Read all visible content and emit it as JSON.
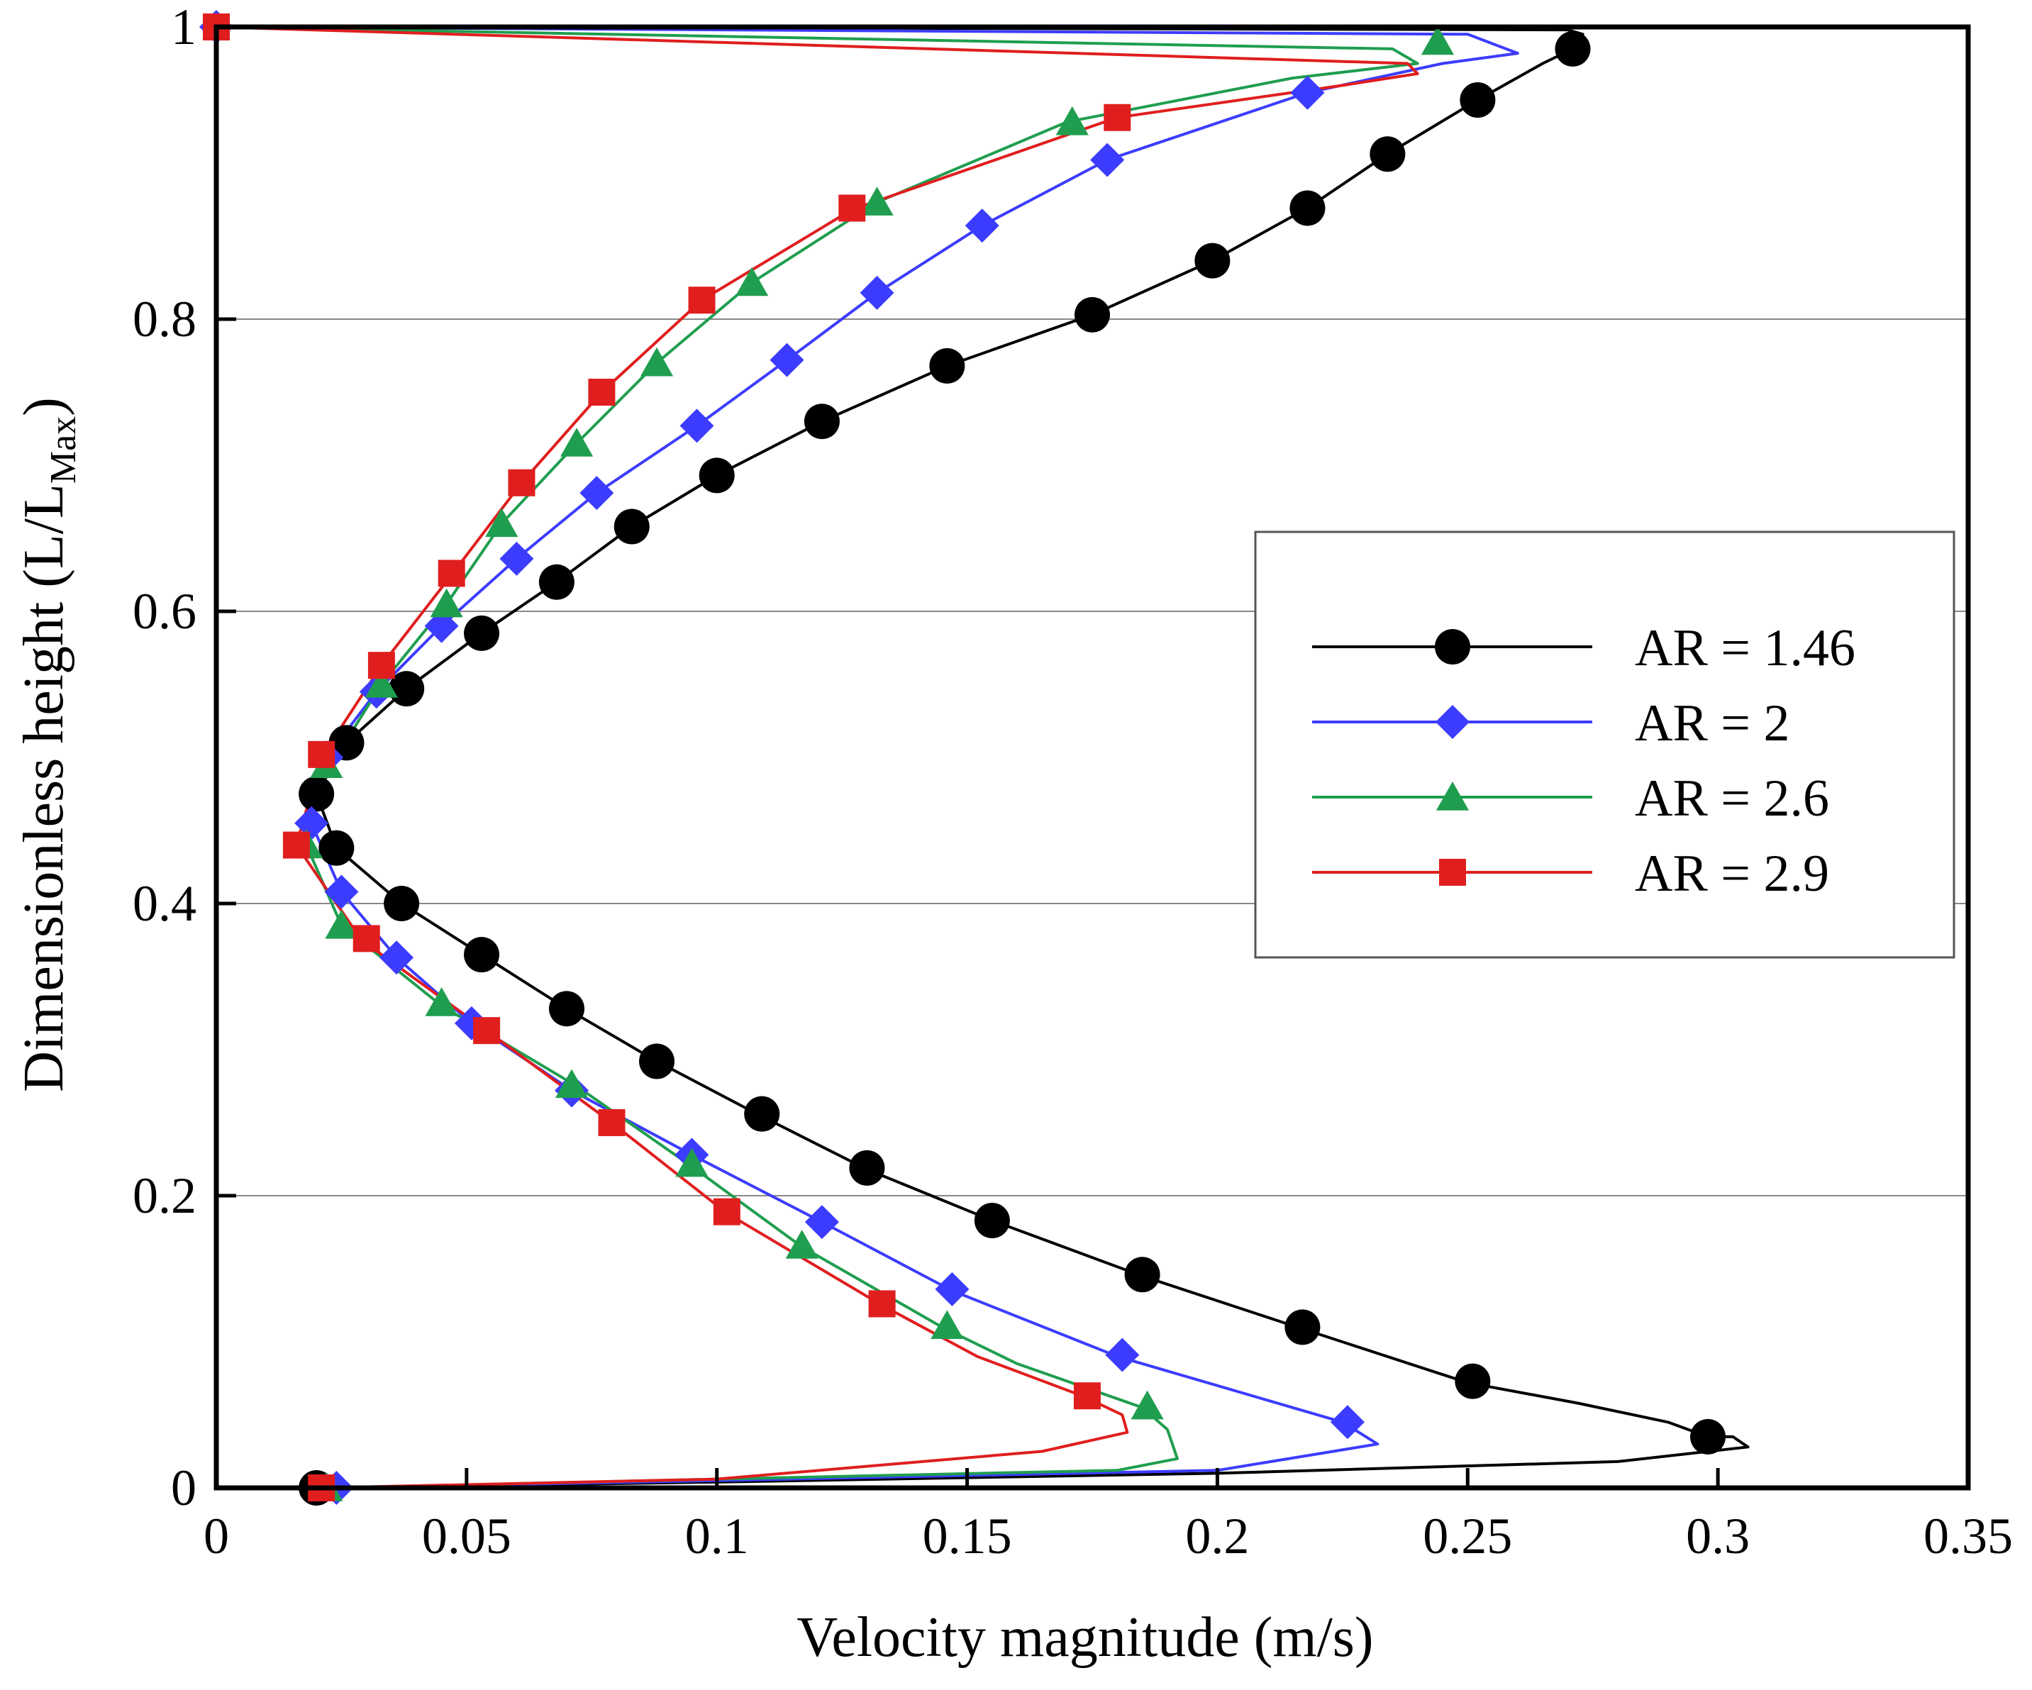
{
  "chart_data": {
    "type": "line",
    "title": "",
    "xlabel": "Velocity magnitude (m/s)",
    "ylabel_main": "Dimensionless height (L/L",
    "ylabel_sub": "Max",
    "ylabel_close": ")",
    "xlim": [
      0,
      0.35
    ],
    "ylim": [
      0,
      1
    ],
    "x_ticks": [
      0,
      0.05,
      0.1,
      0.15,
      0.2,
      0.25,
      0.3,
      0.35
    ],
    "x_tick_labels": [
      "0",
      "0.05",
      "0.1",
      "0.15",
      "0.2",
      "0.25",
      "0.3",
      "0.35"
    ],
    "y_ticks": [
      0,
      0.2,
      0.4,
      0.6,
      0.8,
      1
    ],
    "y_tick_labels": [
      "0",
      "0.2",
      "0.4",
      "0.6",
      "0.8",
      "1"
    ],
    "grid": "horizontal",
    "legend_position": "center-right",
    "series": [
      {
        "name": "AR = 1.46",
        "color": "#000000",
        "marker": "circle",
        "line": [
          [
            0.021,
            0.0
          ],
          [
            0.1,
            0.004
          ],
          [
            0.2,
            0.01
          ],
          [
            0.28,
            0.018
          ],
          [
            0.306,
            0.028
          ],
          [
            0.303,
            0.035
          ],
          [
            0.298,
            0.035
          ],
          [
            0.29,
            0.045
          ],
          [
            0.272,
            0.058
          ],
          [
            0.25,
            0.072
          ],
          [
            0.216,
            0.11
          ],
          [
            0.185,
            0.145
          ],
          [
            0.155,
            0.183
          ],
          [
            0.13,
            0.218
          ],
          [
            0.108,
            0.256
          ],
          [
            0.088,
            0.292
          ],
          [
            0.07,
            0.328
          ],
          [
            0.053,
            0.365
          ],
          [
            0.037,
            0.4
          ],
          [
            0.024,
            0.438
          ],
          [
            0.02,
            0.475
          ],
          [
            0.026,
            0.51
          ],
          [
            0.038,
            0.547
          ],
          [
            0.053,
            0.585
          ],
          [
            0.068,
            0.62
          ],
          [
            0.083,
            0.658
          ],
          [
            0.1,
            0.693
          ],
          [
            0.121,
            0.73
          ],
          [
            0.146,
            0.768
          ],
          [
            0.175,
            0.803
          ],
          [
            0.199,
            0.84
          ],
          [
            0.218,
            0.876
          ],
          [
            0.234,
            0.913
          ],
          [
            0.252,
            0.95
          ],
          [
            0.265,
            0.975
          ],
          [
            0.271,
            0.985
          ],
          [
            0.273,
            0.995
          ],
          [
            0.27,
            0.998
          ],
          [
            0.15,
            0.999
          ],
          [
            0.0,
            1.0
          ]
        ],
        "markers": [
          [
            0.02,
            0.0
          ],
          [
            0.298,
            0.035
          ],
          [
            0.251,
            0.073
          ],
          [
            0.217,
            0.11
          ],
          [
            0.185,
            0.146
          ],
          [
            0.155,
            0.183
          ],
          [
            0.13,
            0.219
          ],
          [
            0.109,
            0.256
          ],
          [
            0.088,
            0.292
          ],
          [
            0.07,
            0.328
          ],
          [
            0.053,
            0.365
          ],
          [
            0.037,
            0.4
          ],
          [
            0.024,
            0.438
          ],
          [
            0.02,
            0.475
          ],
          [
            0.026,
            0.51
          ],
          [
            0.038,
            0.547
          ],
          [
            0.053,
            0.585
          ],
          [
            0.068,
            0.62
          ],
          [
            0.083,
            0.658
          ],
          [
            0.1,
            0.693
          ],
          [
            0.121,
            0.73
          ],
          [
            0.146,
            0.768
          ],
          [
            0.175,
            0.803
          ],
          [
            0.199,
            0.84
          ],
          [
            0.218,
            0.876
          ],
          [
            0.234,
            0.913
          ],
          [
            0.252,
            0.95
          ],
          [
            0.271,
            0.985
          ]
        ]
      },
      {
        "name": "AR = 2",
        "color": "#3c3cff",
        "marker": "diamond",
        "line": [
          [
            0.023,
            0.0
          ],
          [
            0.1,
            0.005
          ],
          [
            0.2,
            0.012
          ],
          [
            0.232,
            0.03
          ],
          [
            0.225,
            0.045
          ],
          [
            0.21,
            0.06
          ],
          [
            0.18,
            0.09
          ],
          [
            0.147,
            0.135
          ],
          [
            0.121,
            0.182
          ],
          [
            0.095,
            0.228
          ],
          [
            0.071,
            0.272
          ],
          [
            0.051,
            0.318
          ],
          [
            0.036,
            0.363
          ],
          [
            0.025,
            0.408
          ],
          [
            0.019,
            0.455
          ],
          [
            0.022,
            0.5
          ],
          [
            0.032,
            0.545
          ],
          [
            0.045,
            0.59
          ],
          [
            0.06,
            0.636
          ],
          [
            0.076,
            0.681
          ],
          [
            0.096,
            0.727
          ],
          [
            0.114,
            0.772
          ],
          [
            0.132,
            0.818
          ],
          [
            0.153,
            0.864
          ],
          [
            0.178,
            0.909
          ],
          [
            0.218,
            0.955
          ],
          [
            0.245,
            0.975
          ],
          [
            0.26,
            0.982
          ],
          [
            0.25,
            0.995
          ],
          [
            0.0,
            1.0
          ]
        ],
        "markers": [
          [
            0.024,
            0.0
          ],
          [
            0.226,
            0.045
          ],
          [
            0.181,
            0.091
          ],
          [
            0.147,
            0.136
          ],
          [
            0.121,
            0.182
          ],
          [
            0.095,
            0.228
          ],
          [
            0.071,
            0.272
          ],
          [
            0.051,
            0.318
          ],
          [
            0.036,
            0.363
          ],
          [
            0.025,
            0.408
          ],
          [
            0.019,
            0.455
          ],
          [
            0.022,
            0.5
          ],
          [
            0.032,
            0.545
          ],
          [
            0.045,
            0.59
          ],
          [
            0.06,
            0.636
          ],
          [
            0.076,
            0.681
          ],
          [
            0.096,
            0.727
          ],
          [
            0.114,
            0.772
          ],
          [
            0.132,
            0.818
          ],
          [
            0.153,
            0.864
          ],
          [
            0.178,
            0.909
          ],
          [
            0.218,
            0.955
          ],
          [
            0.0,
            1.0
          ]
        ]
      },
      {
        "name": "AR = 2.6",
        "color": "#1f9e4f",
        "marker": "triangle",
        "line": [
          [
            0.022,
            0.0
          ],
          [
            0.1,
            0.006
          ],
          [
            0.18,
            0.012
          ],
          [
            0.192,
            0.02
          ],
          [
            0.19,
            0.04
          ],
          [
            0.185,
            0.055
          ],
          [
            0.16,
            0.085
          ],
          [
            0.145,
            0.11
          ],
          [
            0.117,
            0.165
          ],
          [
            0.095,
            0.22
          ],
          [
            0.072,
            0.275
          ],
          [
            0.045,
            0.33
          ],
          [
            0.025,
            0.385
          ],
          [
            0.018,
            0.44
          ],
          [
            0.022,
            0.49
          ],
          [
            0.033,
            0.55
          ],
          [
            0.046,
            0.605
          ],
          [
            0.057,
            0.66
          ],
          [
            0.072,
            0.715
          ],
          [
            0.088,
            0.77
          ],
          [
            0.107,
            0.825
          ],
          [
            0.132,
            0.88
          ],
          [
            0.17,
            0.935
          ],
          [
            0.215,
            0.965
          ],
          [
            0.24,
            0.975
          ],
          [
            0.235,
            0.985
          ],
          [
            0.0,
            1.0
          ]
        ],
        "markers": [
          [
            0.022,
            0.0
          ],
          [
            0.186,
            0.056
          ],
          [
            0.146,
            0.111
          ],
          [
            0.117,
            0.166
          ],
          [
            0.095,
            0.222
          ],
          [
            0.071,
            0.276
          ],
          [
            0.045,
            0.332
          ],
          [
            0.025,
            0.385
          ],
          [
            0.018,
            0.44
          ],
          [
            0.022,
            0.495
          ],
          [
            0.033,
            0.55
          ],
          [
            0.046,
            0.605
          ],
          [
            0.057,
            0.66
          ],
          [
            0.072,
            0.715
          ],
          [
            0.088,
            0.77
          ],
          [
            0.107,
            0.825
          ],
          [
            0.132,
            0.88
          ],
          [
            0.171,
            0.935
          ],
          [
            0.244,
            0.99
          ]
        ]
      },
      {
        "name": "AR = 2.9",
        "color": "#e01e1e",
        "marker": "square",
        "line": [
          [
            0.021,
            0.0
          ],
          [
            0.1,
            0.006
          ],
          [
            0.165,
            0.025
          ],
          [
            0.182,
            0.038
          ],
          [
            0.181,
            0.05
          ],
          [
            0.173,
            0.063
          ],
          [
            0.152,
            0.09
          ],
          [
            0.133,
            0.125
          ],
          [
            0.102,
            0.188
          ],
          [
            0.079,
            0.25
          ],
          [
            0.054,
            0.313
          ],
          [
            0.029,
            0.375
          ],
          [
            0.016,
            0.44
          ],
          [
            0.021,
            0.5
          ],
          [
            0.033,
            0.563
          ],
          [
            0.047,
            0.625
          ],
          [
            0.061,
            0.688
          ],
          [
            0.077,
            0.75
          ],
          [
            0.097,
            0.813
          ],
          [
            0.127,
            0.875
          ],
          [
            0.18,
            0.938
          ],
          [
            0.225,
            0.96
          ],
          [
            0.24,
            0.968
          ],
          [
            0.238,
            0.975
          ],
          [
            0.0,
            1.0
          ]
        ],
        "markers": [
          [
            0.021,
            0.0
          ],
          [
            0.174,
            0.063
          ],
          [
            0.133,
            0.126
          ],
          [
            0.102,
            0.189
          ],
          [
            0.079,
            0.25
          ],
          [
            0.054,
            0.313
          ],
          [
            0.03,
            0.376
          ],
          [
            0.016,
            0.44
          ],
          [
            0.021,
            0.502
          ],
          [
            0.033,
            0.563
          ],
          [
            0.047,
            0.626
          ],
          [
            0.061,
            0.688
          ],
          [
            0.077,
            0.75
          ],
          [
            0.097,
            0.813
          ],
          [
            0.127,
            0.876
          ],
          [
            0.18,
            0.938
          ],
          [
            0.0,
            1.0
          ]
        ]
      }
    ]
  }
}
